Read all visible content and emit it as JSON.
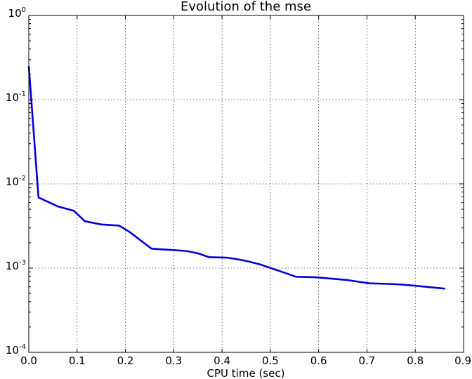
{
  "chart_data": {
    "type": "line",
    "title": "Evolution of the mse",
    "xlabel": "CPU time (sec)",
    "ylabel": "",
    "xlim": [
      0.0,
      0.9
    ],
    "ylim": [
      0.0001,
      1
    ],
    "yscale": "log",
    "grid": true,
    "x_ticks": [
      "0.0",
      "0.1",
      "0.2",
      "0.3",
      "0.4",
      "0.5",
      "0.6",
      "0.7",
      "0.8",
      "0.9"
    ],
    "y_ticks": [
      {
        "base": "10",
        "exp": "0"
      },
      {
        "base": "10",
        "exp": "-1"
      },
      {
        "base": "10",
        "exp": "-2"
      },
      {
        "base": "10",
        "exp": "-3"
      },
      {
        "base": "10",
        "exp": "-4"
      }
    ],
    "series": [
      {
        "color": "#0000dd",
        "x": [
          0.0,
          0.02,
          0.06,
          0.093,
          0.116,
          0.15,
          0.187,
          0.208,
          0.254,
          0.29,
          0.325,
          0.35,
          0.373,
          0.41,
          0.43,
          0.455,
          0.48,
          0.51,
          0.53,
          0.553,
          0.59,
          0.615,
          0.66,
          0.705,
          0.745,
          0.77,
          0.81,
          0.862
        ],
        "y": [
          0.25,
          0.0069,
          0.0054,
          0.0048,
          0.0036,
          0.0033,
          0.0032,
          0.0027,
          0.0017,
          0.00165,
          0.0016,
          0.0015,
          0.00135,
          0.00133,
          0.00128,
          0.0012,
          0.0011,
          0.00096,
          0.00088,
          0.00079,
          0.00078,
          0.00076,
          0.00072,
          0.00066,
          0.00065,
          0.00064,
          0.00061,
          0.00057
        ]
      }
    ]
  }
}
